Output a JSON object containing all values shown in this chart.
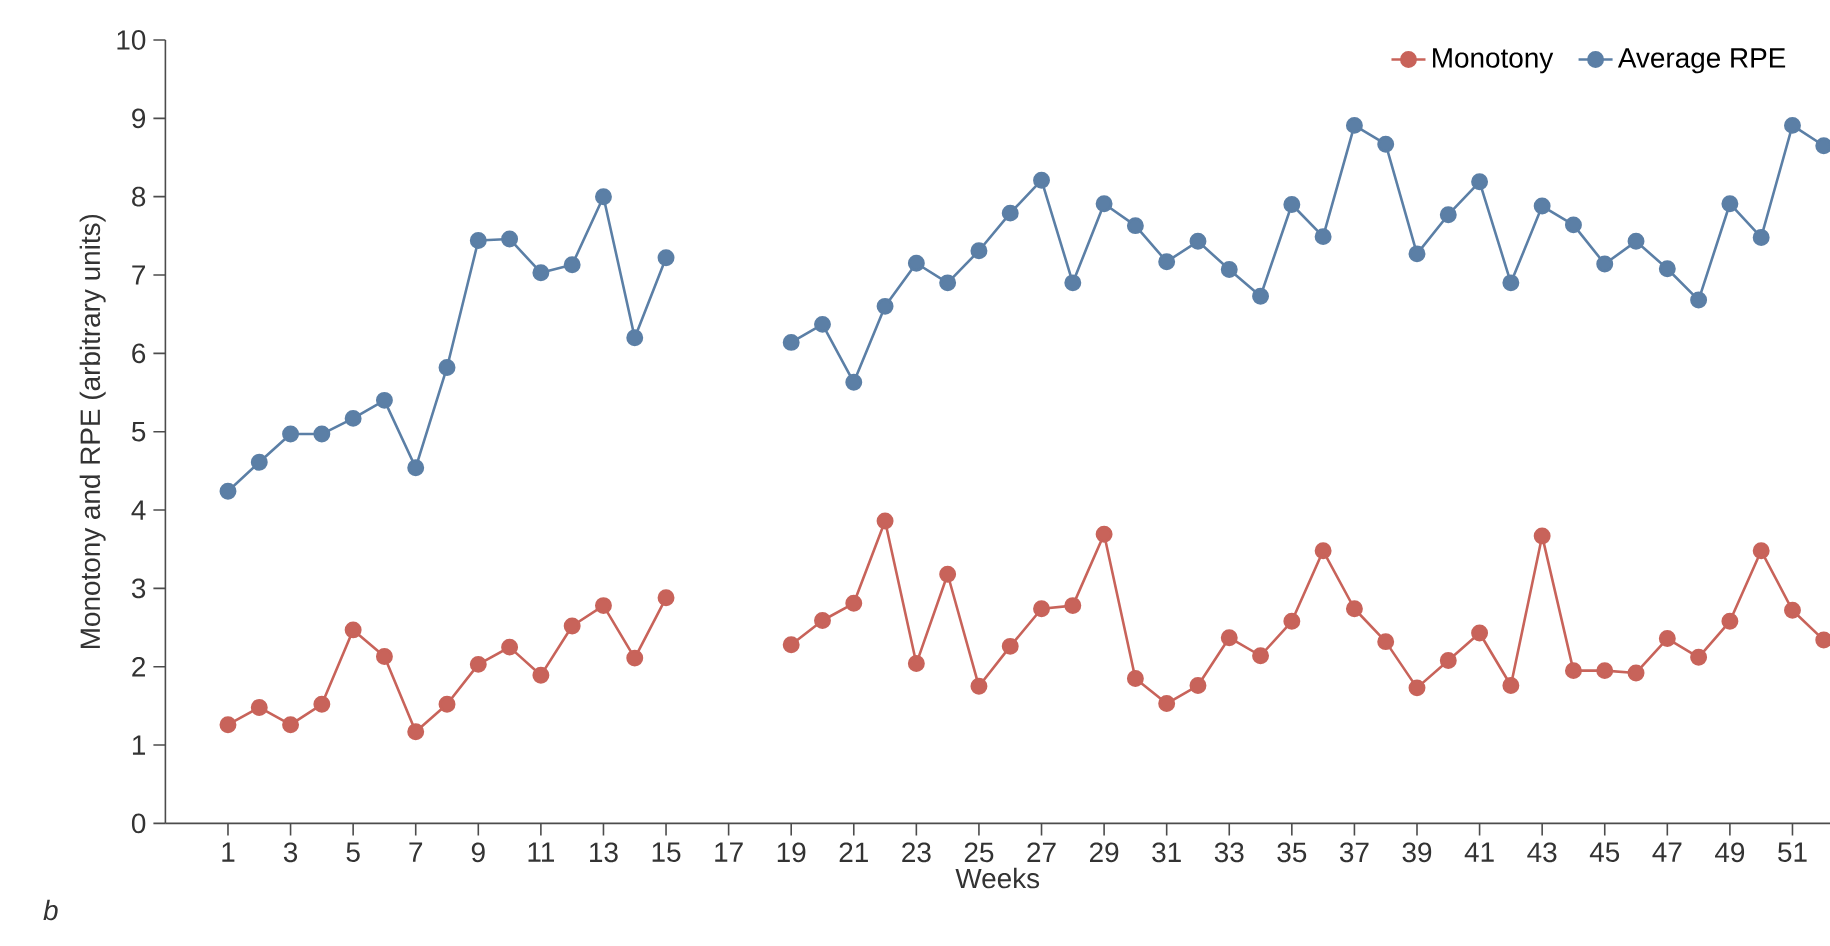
{
  "chart_data": {
    "type": "line",
    "xlabel": "Weeks",
    "ylabel": "Monotony and RPE (arbitrary units)",
    "x": [
      1,
      2,
      3,
      4,
      5,
      6,
      7,
      8,
      9,
      10,
      11,
      12,
      13,
      14,
      15,
      16,
      17,
      18,
      19,
      20,
      21,
      22,
      23,
      24,
      25,
      26,
      27,
      28,
      29,
      30,
      31,
      32,
      33,
      34,
      35,
      36,
      37,
      38,
      39,
      40,
      41,
      42,
      43,
      44,
      45,
      46,
      47,
      48,
      49,
      50,
      51,
      52
    ],
    "series": [
      {
        "name": "Monotony",
        "color": "#c8635a",
        "values": [
          1.26,
          1.48,
          1.26,
          1.52,
          2.47,
          2.13,
          1.17,
          1.52,
          2.03,
          2.25,
          1.89,
          2.52,
          2.78,
          2.11,
          2.88,
          null,
          null,
          null,
          2.28,
          2.59,
          2.81,
          3.86,
          2.04,
          3.18,
          1.75,
          2.26,
          2.74,
          2.78,
          3.69,
          1.85,
          1.53,
          1.76,
          2.37,
          2.14,
          2.58,
          3.48,
          2.74,
          2.32,
          1.73,
          2.08,
          2.43,
          1.76,
          3.67,
          1.95,
          1.95,
          1.92,
          2.36,
          2.12,
          2.58,
          3.48,
          2.72,
          2.34
        ]
      },
      {
        "name": "Average RPE",
        "color": "#5b7fa6",
        "values": [
          4.24,
          4.61,
          4.97,
          4.97,
          5.17,
          5.4,
          4.54,
          5.82,
          7.44,
          7.46,
          7.03,
          7.13,
          8.0,
          6.2,
          7.22,
          null,
          null,
          null,
          6.14,
          6.37,
          5.63,
          6.6,
          7.15,
          6.9,
          7.31,
          7.79,
          8.21,
          6.9,
          7.91,
          7.63,
          7.17,
          7.43,
          7.07,
          6.73,
          7.9,
          7.49,
          8.91,
          8.67,
          7.27,
          7.77,
          8.19,
          6.9,
          7.88,
          7.64,
          7.14,
          7.43,
          7.08,
          6.68,
          7.91,
          7.48,
          8.91,
          8.65
        ]
      }
    ],
    "xlim": [
      -1,
      52.2
    ],
    "ylim": [
      0,
      10
    ],
    "xticks": [
      1,
      3,
      5,
      7,
      9,
      11,
      13,
      15,
      17,
      19,
      21,
      23,
      25,
      27,
      29,
      31,
      33,
      35,
      37,
      39,
      41,
      43,
      45,
      47,
      49,
      51
    ],
    "yticks": [
      0,
      1,
      2,
      3,
      4,
      5,
      6,
      7,
      8,
      9,
      10
    ],
    "marker": "circle",
    "line_style": "solid",
    "legend": "top right",
    "grid": false,
    "annotations": [
      "*b*"
    ]
  }
}
